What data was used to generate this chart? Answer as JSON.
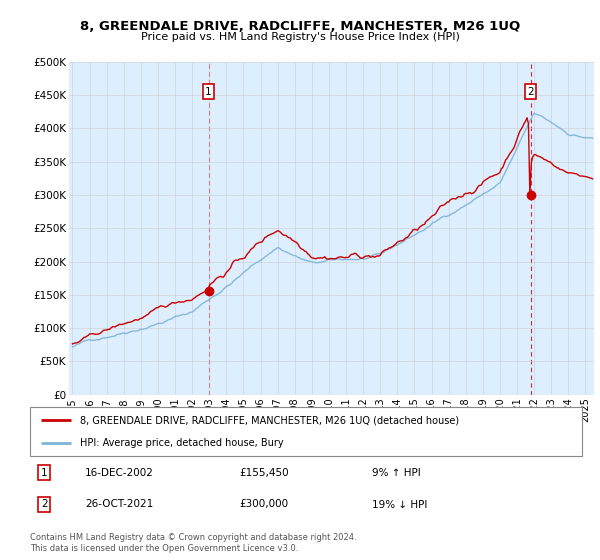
{
  "title": "8, GREENDALE DRIVE, RADCLIFFE, MANCHESTER, M26 1UQ",
  "subtitle": "Price paid vs. HM Land Registry's House Price Index (HPI)",
  "legend_line1": "8, GREENDALE DRIVE, RADCLIFFE, MANCHESTER, M26 1UQ (detached house)",
  "legend_line2": "HPI: Average price, detached house, Bury",
  "footnote": "Contains HM Land Registry data © Crown copyright and database right 2024.\nThis data is licensed under the Open Government Licence v3.0.",
  "transaction1_date": "16-DEC-2002",
  "transaction1_price": "£155,450",
  "transaction1_hpi": "9% ↑ HPI",
  "transaction2_date": "26-OCT-2021",
  "transaction2_price": "£300,000",
  "transaction2_hpi": "19% ↓ HPI",
  "ylim": [
    0,
    500000
  ],
  "yticks": [
    0,
    50000,
    100000,
    150000,
    200000,
    250000,
    300000,
    350000,
    400000,
    450000,
    500000
  ],
  "ytick_labels": [
    "£0",
    "£50K",
    "£100K",
    "£150K",
    "£200K",
    "£250K",
    "£300K",
    "£350K",
    "£400K",
    "£450K",
    "£500K"
  ],
  "red_color": "#cc0000",
  "blue_color": "#7eb3d8",
  "dashed_red": "#cc0000",
  "grid_color": "#cccccc",
  "bg_color": "#ddeeff",
  "transaction1_year": 2002.96,
  "transaction1_y": 155450,
  "transaction2_year": 2021.79,
  "transaction2_y": 300000,
  "xmin": 1995.0,
  "xmax": 2025.5,
  "xtick_years": [
    1995,
    1996,
    1997,
    1998,
    1999,
    2000,
    2001,
    2002,
    2003,
    2004,
    2005,
    2006,
    2007,
    2008,
    2009,
    2010,
    2011,
    2012,
    2013,
    2014,
    2015,
    2016,
    2017,
    2018,
    2019,
    2020,
    2021,
    2022,
    2023,
    2024,
    2025
  ]
}
